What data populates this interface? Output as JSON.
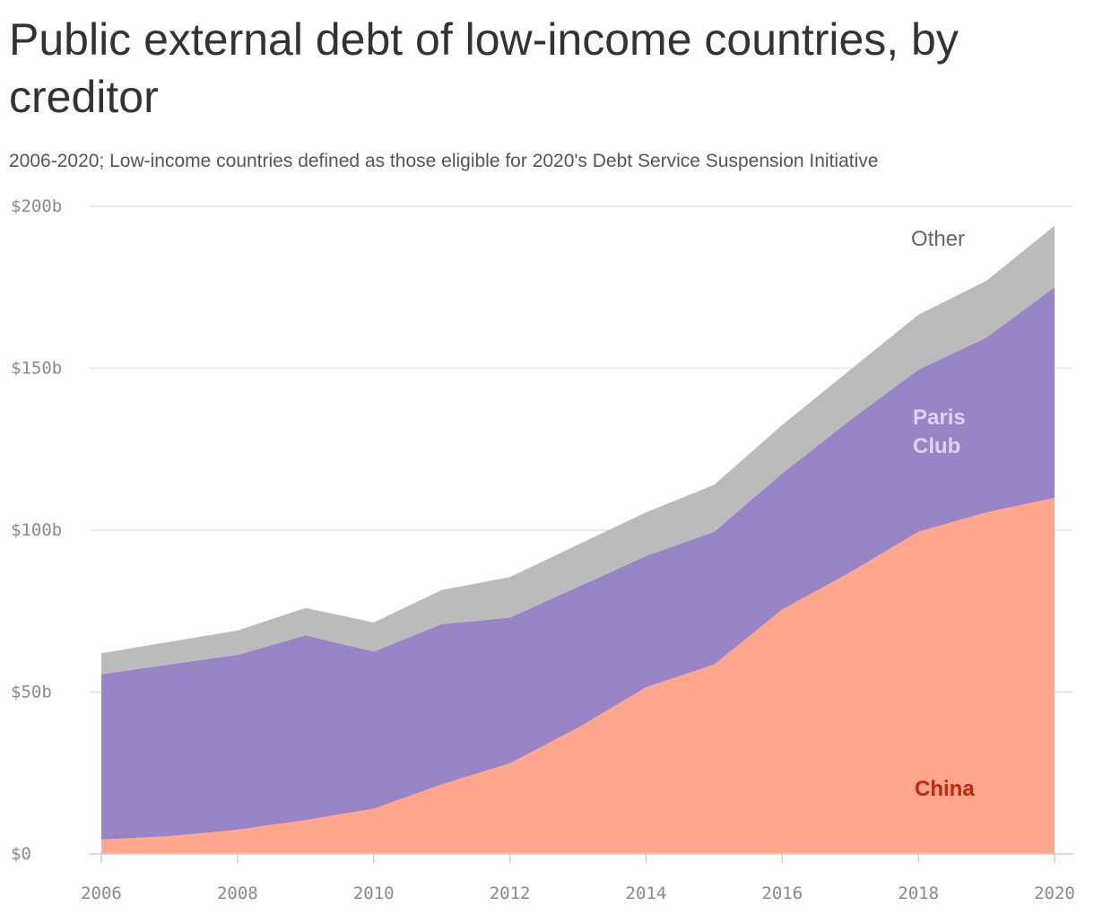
{
  "title": "Public external debt of low-income countries, by creditor",
  "subtitle": "2006-2020; Low-income countries defined as those eligible for 2020's Debt Service Suspension Initiative",
  "chart_data": {
    "type": "area",
    "stacked": true,
    "title": "Public external debt of low-income countries, by creditor",
    "subtitle": "2006-2020; Low-income countries defined as those eligible for 2020's Debt Service Suspension Initiative",
    "x": [
      2006,
      2007,
      2008,
      2009,
      2010,
      2011,
      2012,
      2013,
      2014,
      2015,
      2016,
      2017,
      2018,
      2019,
      2020
    ],
    "series": [
      {
        "name": "China",
        "color": "#ffa68c",
        "label_color": "#c0280f",
        "values": [
          4.5,
          5.5,
          7.5,
          10.5,
          14.0,
          21.5,
          28.0,
          39.0,
          51.5,
          58.5,
          75.5,
          87.0,
          99.5,
          105.5,
          110.0
        ]
      },
      {
        "name": "Paris Club",
        "color": "#9985c6",
        "label_color": "#dcd2f5",
        "values": [
          51.0,
          53.0,
          54.0,
          57.0,
          48.5,
          49.5,
          45.0,
          43.5,
          40.5,
          41.0,
          42.0,
          47.0,
          50.0,
          54.0,
          65.0
        ]
      },
      {
        "name": "Other",
        "color": "#bbbbbb",
        "label_color": "#666666",
        "values": [
          6.5,
          7.0,
          7.5,
          8.5,
          9.0,
          10.5,
          12.5,
          13.0,
          13.5,
          14.5,
          15.0,
          15.5,
          17.0,
          17.5,
          19.0
        ]
      }
    ],
    "series_labels": {
      "china": "China",
      "paris_club": [
        "Paris",
        "Club"
      ],
      "other": "Other"
    },
    "yticks": [
      0,
      50,
      100,
      150,
      200
    ],
    "ytick_labels": [
      "$0",
      "$50b",
      "$100b",
      "$150b",
      "$200b"
    ],
    "xticks": [
      2006,
      2008,
      2010,
      2012,
      2014,
      2016,
      2018,
      2020
    ],
    "xtick_labels": [
      "2006",
      "2008",
      "2010",
      "2012",
      "2014",
      "2016",
      "2018",
      "2020"
    ],
    "ylim": [
      0,
      200
    ],
    "xlim": [
      2006,
      2020
    ],
    "xlabel": "",
    "ylabel": "",
    "grid": true,
    "legend": "none (series labeled inline)"
  }
}
